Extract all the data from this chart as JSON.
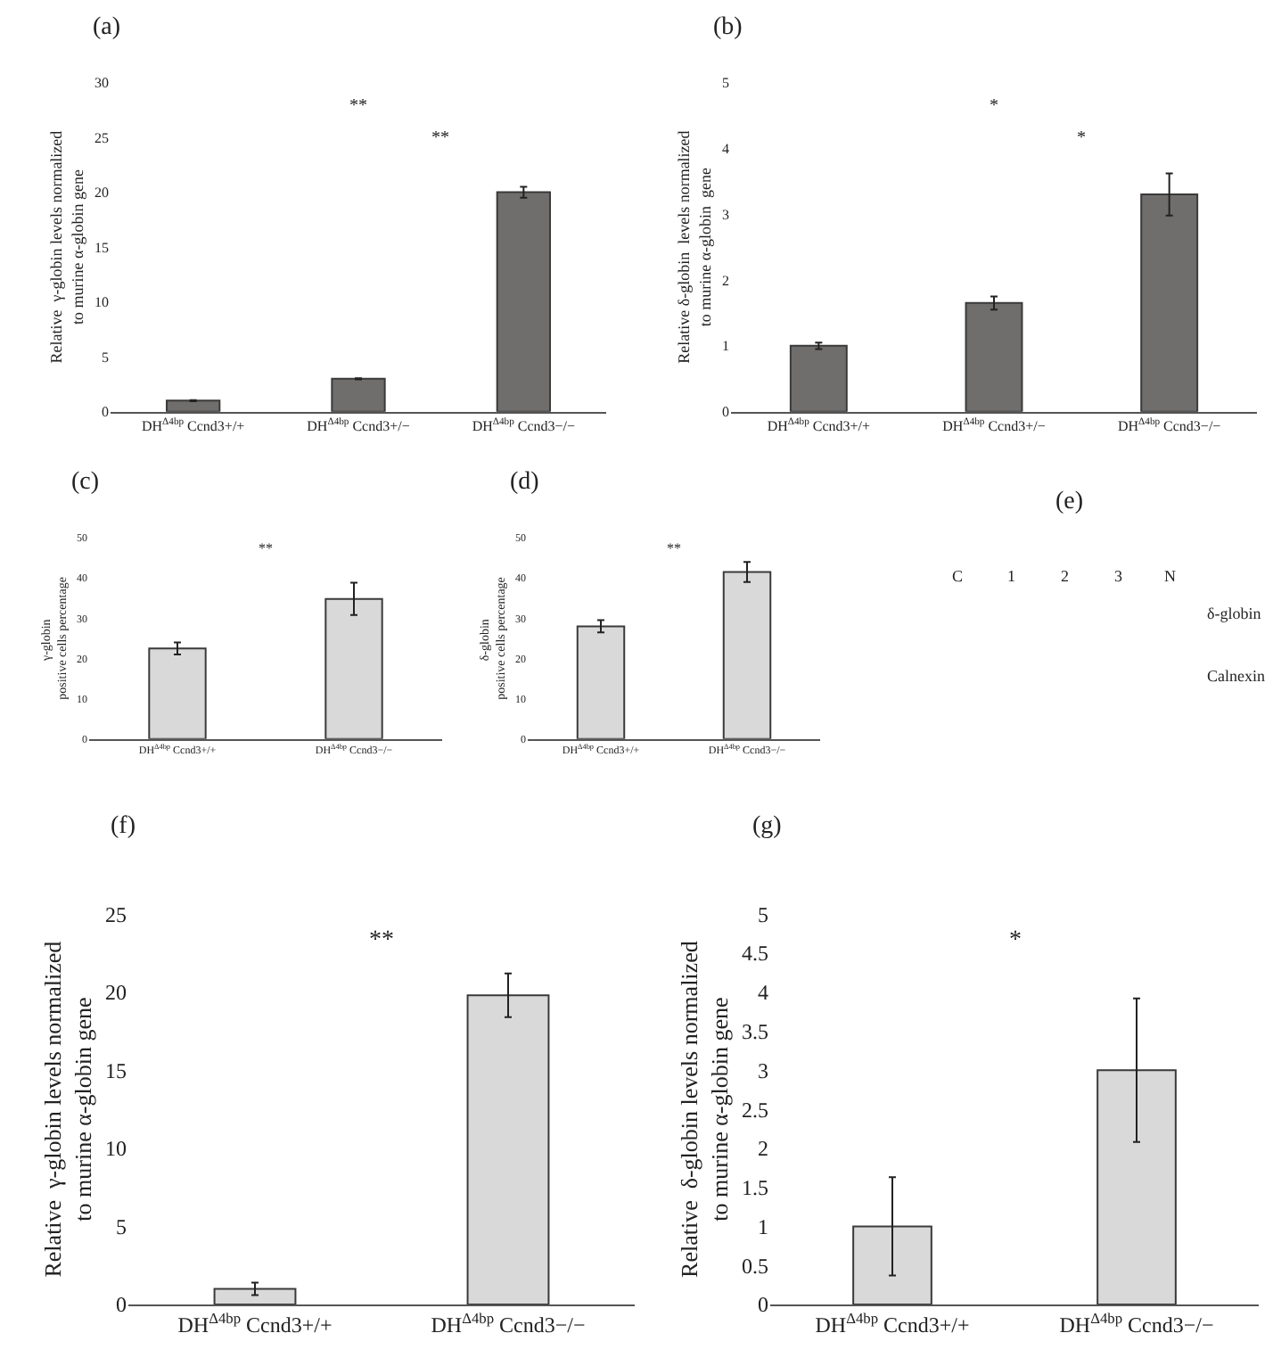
{
  "chart_data": [
    {
      "type": "bar",
      "title": "(a)",
      "ylabel": "Relative  γ-globin levels normalized to murine α-globin gene",
      "categories": [
        "DH$^{Δ4bp}$ Ccnd3+/+",
        "DH$^{Δ4bp}$ Ccnd3+/−",
        "DH$^{Δ4bp}$ Ccnd3−/−"
      ],
      "values": [
        1.0,
        3.0,
        20.0
      ],
      "errors": [
        0.05,
        0.05,
        0.5
      ],
      "color": "#706d6d",
      "ylim": [
        0,
        30
      ],
      "yticks": [
        0,
        5,
        10,
        15,
        20,
        25,
        30
      ],
      "annotations": [
        "**",
        "**"
      ]
    },
    {
      "type": "bar",
      "title": "(b)",
      "ylabel": "Relative δ-globin  levels normalized to murine α-globin  gene",
      "categories": [
        "DH$^{Δ4bp}$ Ccnd3+/+",
        "DH$^{Δ4bp}$ Ccnd3+/−",
        "DH$^{Δ4bp}$ Ccnd3−/−"
      ],
      "values": [
        1.0,
        1.65,
        3.3
      ],
      "errors": [
        0.05,
        0.1,
        0.32
      ],
      "color": "#706d6d",
      "ylim": [
        0,
        5
      ],
      "yticks": [
        0,
        1,
        2,
        3,
        4,
        5
      ],
      "annotations": [
        "*",
        "*"
      ]
    },
    {
      "type": "bar",
      "title": "(c)",
      "ylabel": "γ-globin  positive cells percentage",
      "categories": [
        "DH$^{Δ4bp}$ Ccnd3+/+",
        "DH$^{Δ4bp}$ Ccnd3−/−"
      ],
      "values": [
        22.5,
        34.8
      ],
      "errors": [
        1.5,
        4
      ],
      "color": "#d9d9d9",
      "ylim": [
        0,
        50
      ],
      "yticks": [
        0,
        10,
        20,
        30,
        40,
        50
      ],
      "annotations": [
        "**"
      ]
    },
    {
      "type": "bar",
      "title": "(d)",
      "ylabel": "δ-globin  positive cells percentage",
      "categories": [
        "DH$^{Δ4bp}$ Ccnd3+/+",
        "DH$^{Δ4bp}$ Ccnd3−/−"
      ],
      "values": [
        28,
        41.5
      ],
      "errors": [
        1.5,
        2.5
      ],
      "color": "#d9d9d9",
      "ylim": [
        0,
        50
      ],
      "yticks": [
        0,
        10,
        20,
        30,
        40,
        50
      ],
      "annotations": [
        "**"
      ]
    },
    {
      "type": "other",
      "title": "(e)",
      "annotations": [
        "C",
        "1",
        "2",
        "3",
        "N",
        "δ-globin",
        "Calnexin"
      ]
    },
    {
      "type": "bar",
      "title": "(f)",
      "ylabel": "Relative  γ-globin levels normalized to murine α-globin gene",
      "categories": [
        "DH$^{Δ4bp}$ Ccnd3+/+",
        "DH$^{Δ4bp}$ Ccnd3−/−"
      ],
      "values": [
        1.0,
        19.8
      ],
      "errors": [
        0.4,
        1.4
      ],
      "color": "#d9d9d9",
      "ylim": [
        0,
        25
      ],
      "yticks": [
        0,
        5,
        10,
        15,
        20,
        25
      ],
      "annotations": [
        "**"
      ]
    },
    {
      "type": "bar",
      "title": "(g)",
      "ylabel": "Relative  δ-globin levels normalized to murine α-globin gene",
      "categories": [
        "DH$^{Δ4bp}$ Ccnd3+/+",
        "DH$^{Δ4bp}$ Ccnd3−/−"
      ],
      "values": [
        1.0,
        3.0
      ],
      "errors": [
        0.63,
        0.92
      ],
      "color": "#d9d9d9",
      "ylim": [
        0,
        5
      ],
      "yticks": [
        0,
        0.5,
        1,
        1.5,
        2,
        2.5,
        3,
        3.5,
        4,
        4.5,
        5
      ],
      "annotations": [
        "*"
      ]
    }
  ]
}
